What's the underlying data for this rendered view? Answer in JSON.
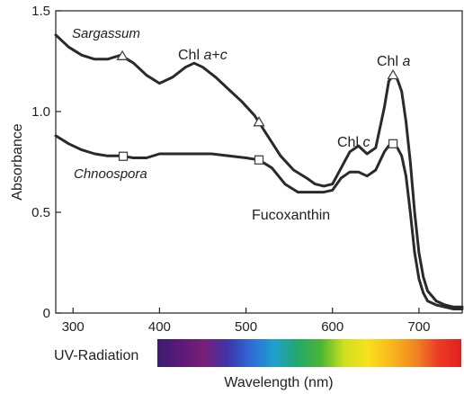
{
  "chart_data": {
    "type": "line",
    "x_ticks": [
      300,
      400,
      500,
      600,
      700
    ],
    "y_ticks": [
      0,
      0.5,
      1.0,
      1.5
    ],
    "y_tick_labels": [
      "0",
      "0.5",
      "1.0",
      "1.5"
    ],
    "xlim": [
      280,
      750
    ],
    "ylim": [
      0,
      1.5
    ],
    "ylabel": "Absorbance",
    "xlabel": "Wavelength (nm)",
    "spectrum_label": "UV-Radiation",
    "series": [
      {
        "name": "Sargassum",
        "x": [
          280,
          295,
          310,
          325,
          340,
          355,
          370,
          385,
          400,
          415,
          430,
          440,
          450,
          465,
          480,
          495,
          510,
          525,
          540,
          555,
          570,
          580,
          590,
          600,
          610,
          620,
          630,
          640,
          650,
          660,
          665,
          670,
          675,
          680,
          685,
          690,
          695,
          700,
          705,
          710,
          720,
          730,
          740,
          750
        ],
        "y": [
          1.38,
          1.32,
          1.28,
          1.26,
          1.26,
          1.28,
          1.24,
          1.18,
          1.14,
          1.17,
          1.22,
          1.24,
          1.22,
          1.17,
          1.11,
          1.05,
          0.98,
          0.88,
          0.78,
          0.71,
          0.67,
          0.64,
          0.63,
          0.64,
          0.72,
          0.8,
          0.83,
          0.79,
          0.82,
          1.02,
          1.15,
          1.18,
          1.16,
          1.1,
          0.95,
          0.75,
          0.5,
          0.3,
          0.18,
          0.11,
          0.06,
          0.04,
          0.03,
          0.03
        ]
      },
      {
        "name": "Chnoospora",
        "x": [
          280,
          295,
          310,
          325,
          340,
          355,
          370,
          385,
          400,
          420,
          440,
          460,
          480,
          500,
          515,
          530,
          545,
          560,
          575,
          590,
          600,
          610,
          620,
          630,
          640,
          650,
          660,
          665,
          670,
          675,
          680,
          685,
          690,
          695,
          700,
          705,
          710,
          720,
          730,
          740,
          750
        ],
        "y": [
          0.88,
          0.84,
          0.81,
          0.79,
          0.78,
          0.78,
          0.77,
          0.77,
          0.79,
          0.79,
          0.79,
          0.79,
          0.78,
          0.77,
          0.76,
          0.72,
          0.64,
          0.6,
          0.6,
          0.6,
          0.61,
          0.67,
          0.7,
          0.7,
          0.68,
          0.71,
          0.8,
          0.83,
          0.84,
          0.82,
          0.78,
          0.68,
          0.5,
          0.3,
          0.17,
          0.1,
          0.06,
          0.04,
          0.03,
          0.02,
          0.02
        ]
      }
    ],
    "markers": [
      {
        "series": "Sargassum",
        "shape": "triangle",
        "x": [
          357,
          515,
          670
        ]
      },
      {
        "series": "Chnoospora",
        "shape": "square",
        "x": [
          358,
          515,
          670
        ]
      }
    ],
    "annotations": [
      {
        "id": "chl-ac",
        "text": "Chl a+c",
        "x": 440,
        "y": 1.27
      },
      {
        "id": "chl-a",
        "text": "Chl a",
        "x": 668,
        "y": 1.24
      },
      {
        "id": "chl-c",
        "text": "Chl c",
        "x": 610,
        "y": 0.85
      },
      {
        "id": "fucoxanthin",
        "text": "Fucoxanthin",
        "x": 590,
        "y": 0.48
      }
    ],
    "grid": false,
    "legend": "none"
  },
  "colors": {
    "line": "#2a2a2a",
    "spectrum": [
      "#3a1c6e",
      "#5a1a7a",
      "#7a1e78",
      "#3f35a8",
      "#2f6ad8",
      "#1fa0d0",
      "#22a86a",
      "#49b534",
      "#cfe020",
      "#f7e21c",
      "#f8b81d",
      "#f08a1f",
      "#ec3d25",
      "#e21f1f"
    ]
  }
}
